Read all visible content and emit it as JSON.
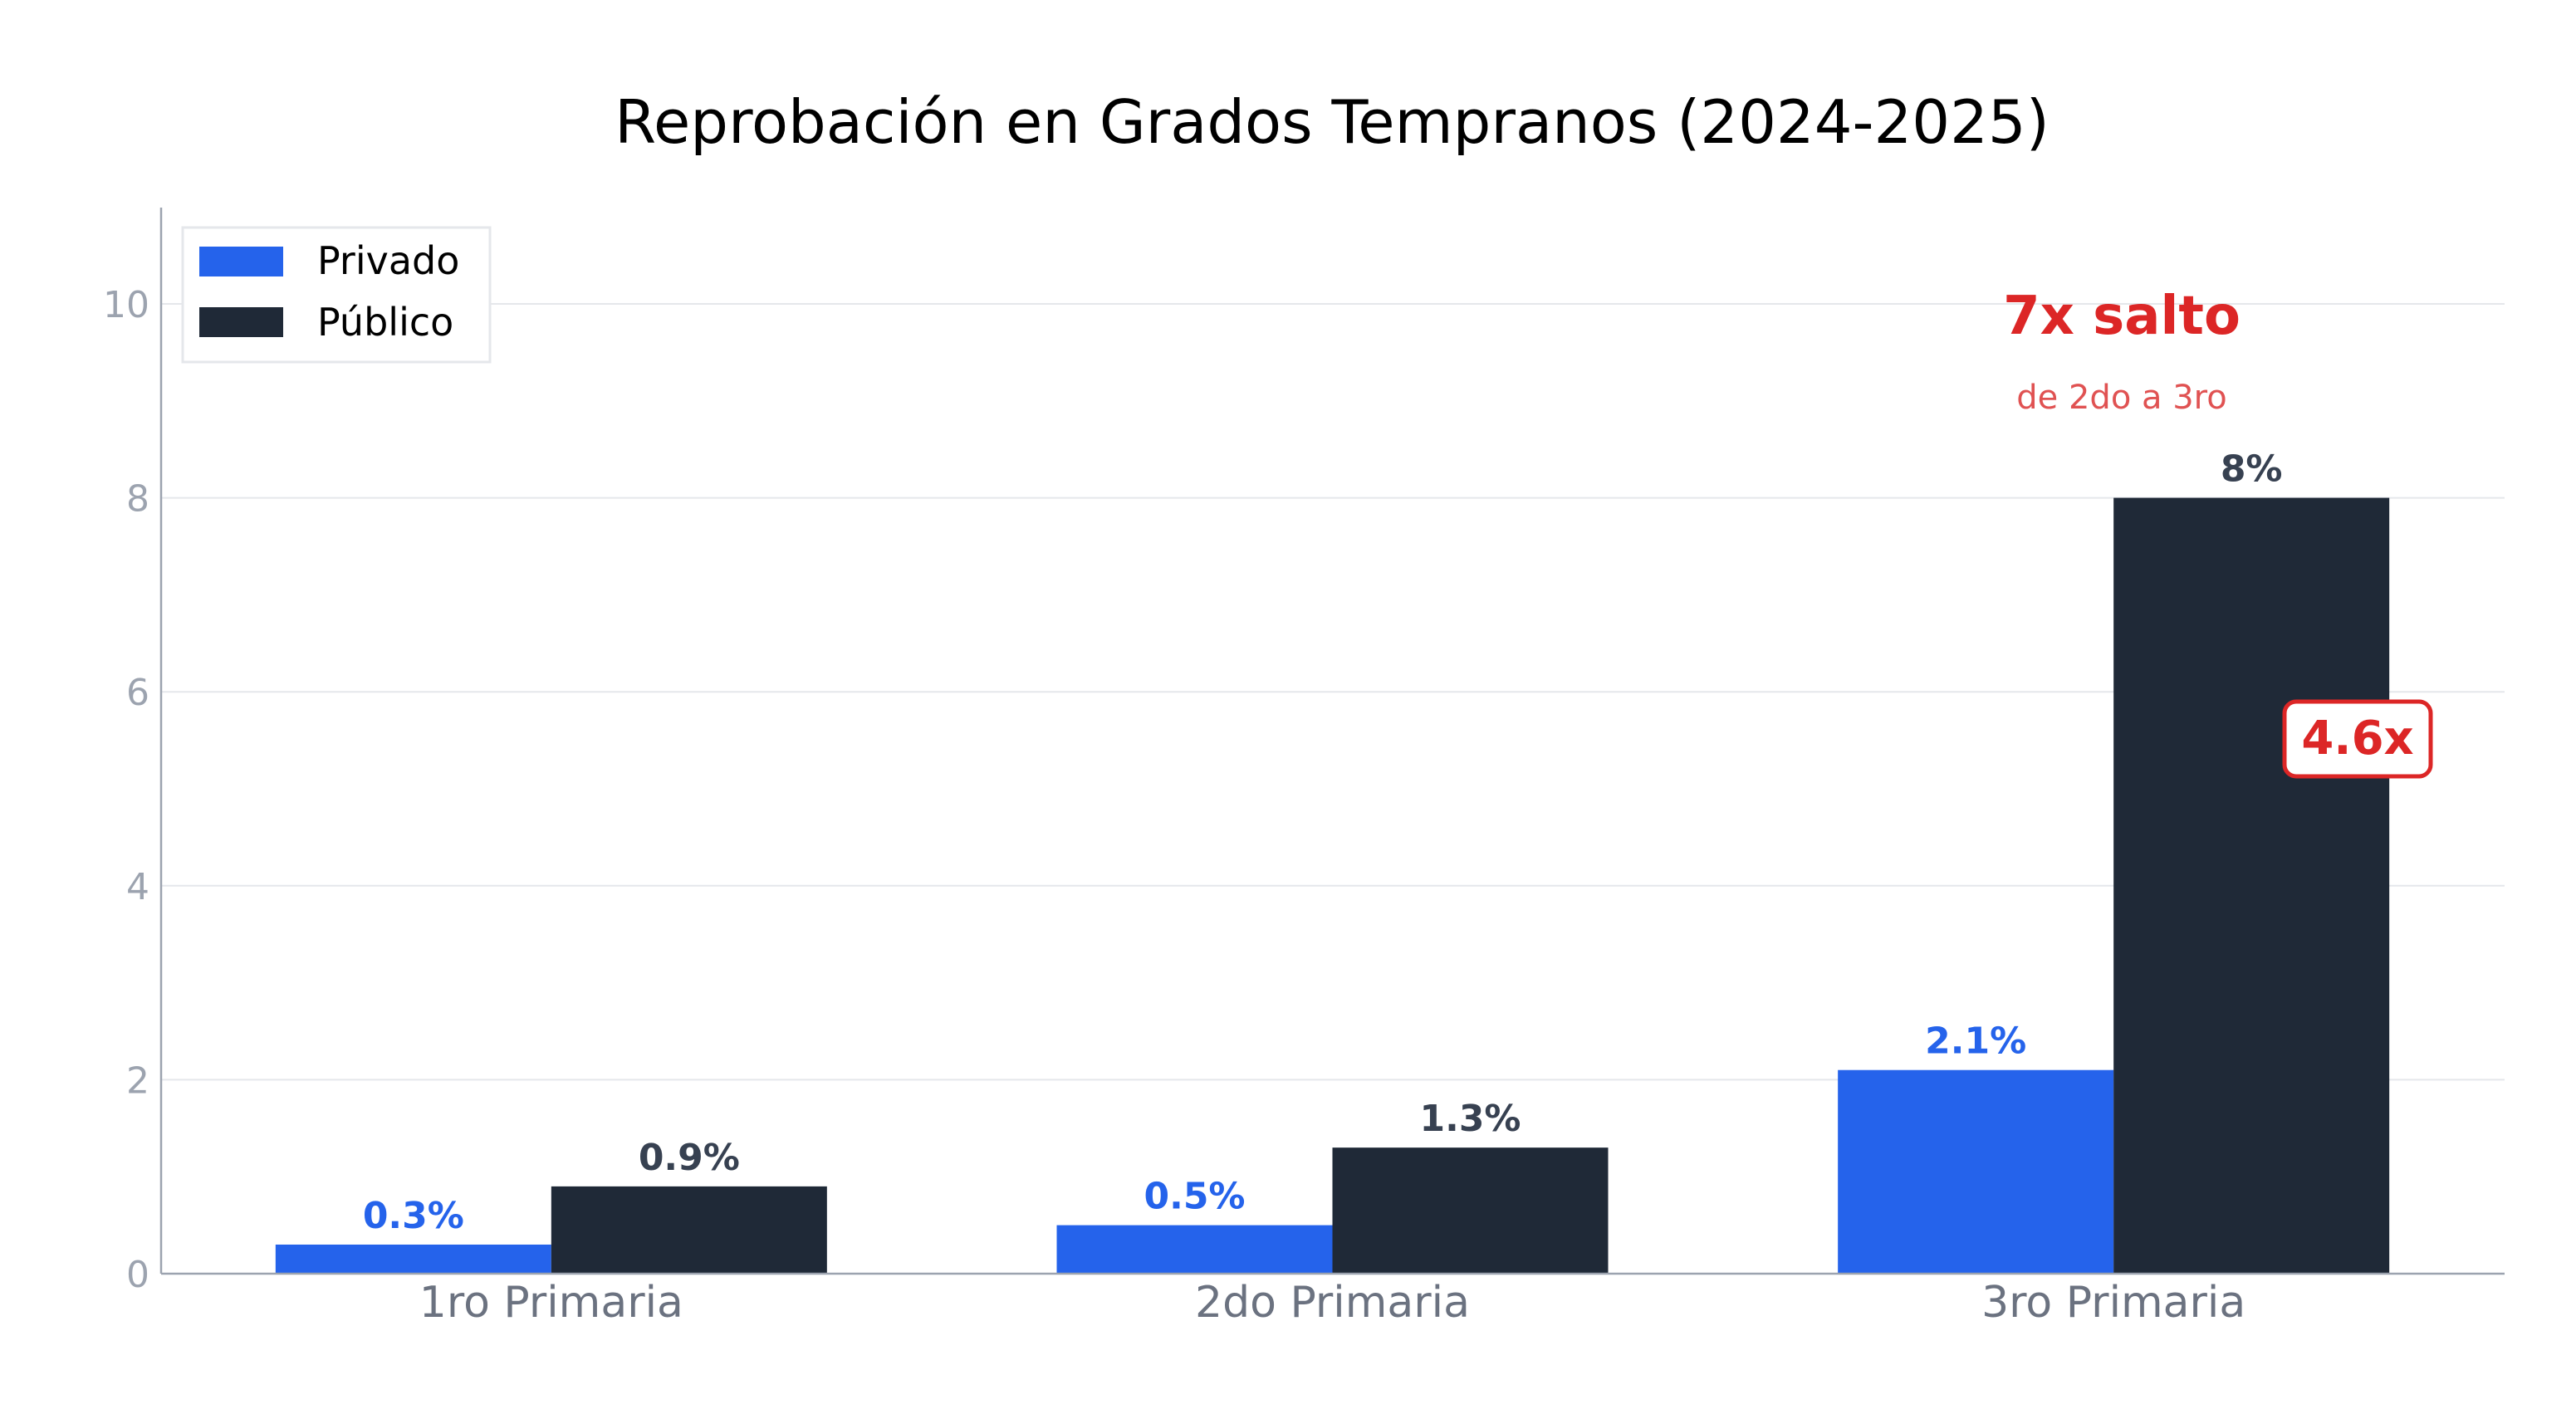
{
  "chart_data": {
    "type": "bar",
    "title": "Reprobación en Grados Tempranos (2024-2025)",
    "xlabel": "",
    "ylabel": "",
    "categories": [
      "1ro Primaria",
      "2do Primaria",
      "3ro Primaria"
    ],
    "series": [
      {
        "name": "Privado",
        "values": [
          0.3,
          0.5,
          2.1
        ],
        "labels": [
          "0.3%",
          "0.5%",
          "2.1%"
        ],
        "color": "#2563eb"
      },
      {
        "name": "Público",
        "values": [
          0.9,
          1.3,
          8.0
        ],
        "labels": [
          "0.9%",
          "1.3%",
          "8%"
        ],
        "color": "#1f2937"
      }
    ],
    "ylim": [
      0,
      11
    ],
    "yticks": [
      "0",
      "2",
      "4",
      "6",
      "8",
      "10"
    ],
    "grid": "horizontal",
    "legend_position": "top-left",
    "annotations": {
      "jump_title": "7x salto",
      "jump_subtitle": "de 2do a 3ro",
      "ratio_badge": "4.6x",
      "accent_color": "#dc2626"
    }
  }
}
